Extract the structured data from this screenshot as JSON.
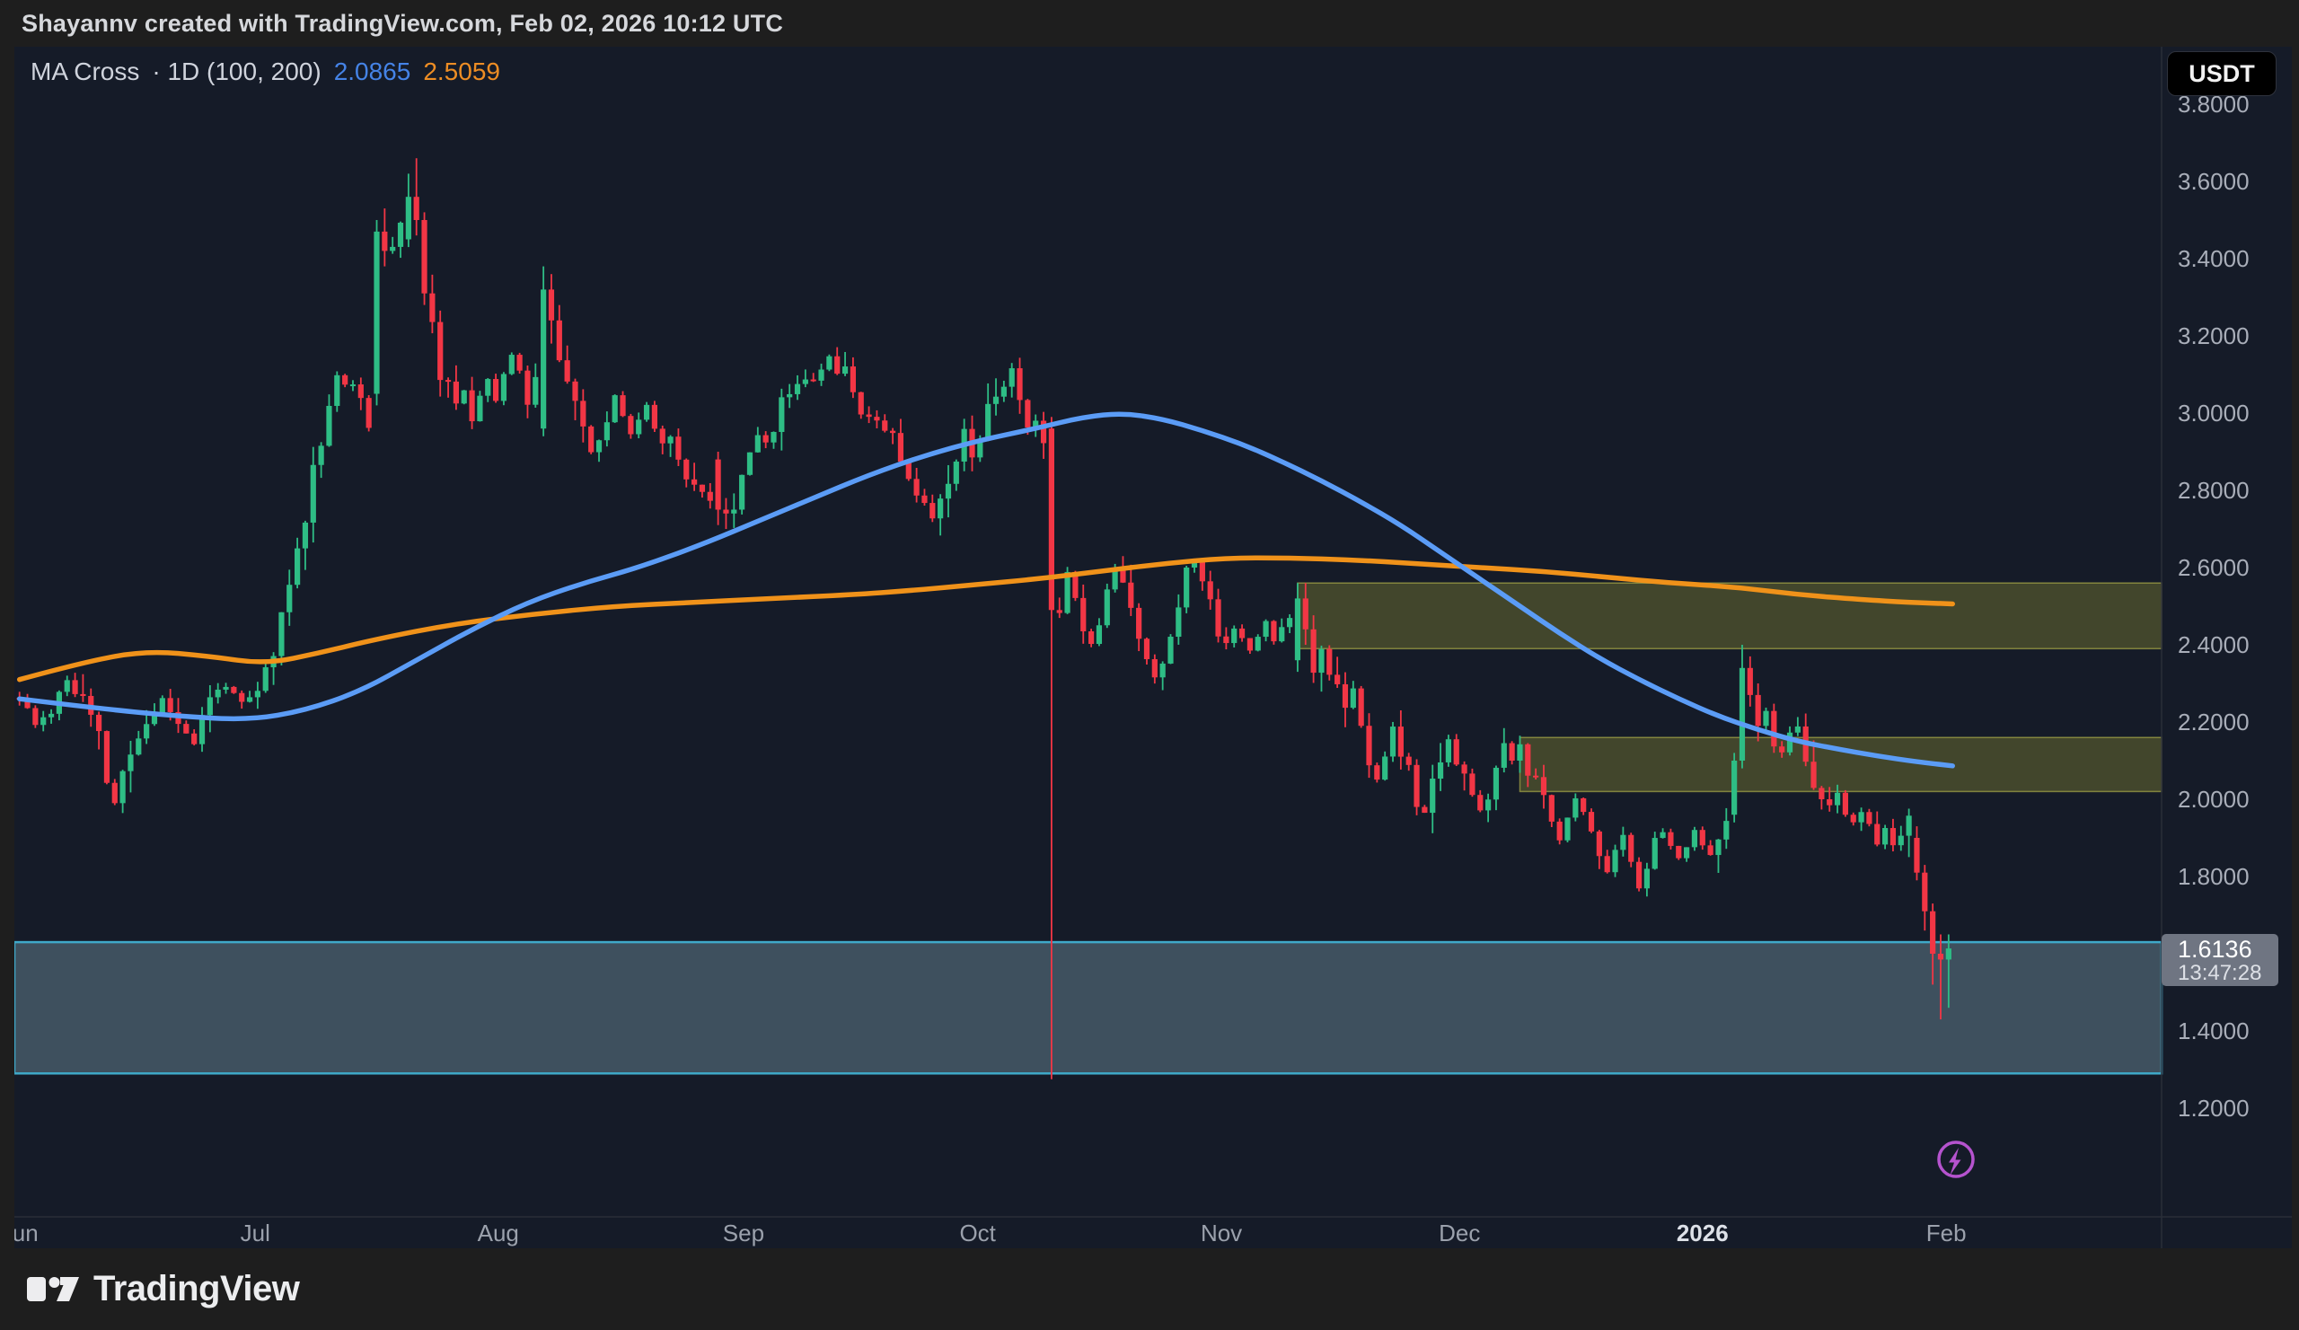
{
  "header": {
    "attribution": "Shayannv created with TradingView.com, Feb 02, 2026 10:12 UTC"
  },
  "legend": {
    "title": "MA Cross",
    "detail": "· 1D (100, 200)",
    "ma_fast_value": "2.0865",
    "ma_slow_value": "2.5059"
  },
  "price_scale": {
    "currency_button": "USDT",
    "ticks": [
      "3.8000",
      "3.6000",
      "3.4000",
      "3.2000",
      "3.0000",
      "2.8000",
      "2.6000",
      "2.4000",
      "2.2000",
      "2.0000",
      "1.8000",
      "1.6000",
      "1.4000",
      "1.2000"
    ],
    "last_price_label": {
      "price": "1.6136",
      "countdown": "13:47:28"
    }
  },
  "time_scale": {
    "ticks": [
      {
        "label": "Jun",
        "day": 0,
        "strong": false
      },
      {
        "label": "Jul",
        "day": 29.7,
        "strong": false
      },
      {
        "label": "Aug",
        "day": 60.3,
        "strong": false
      },
      {
        "label": "Sep",
        "day": 91.2,
        "strong": false
      },
      {
        "label": "Oct",
        "day": 120.7,
        "strong": false
      },
      {
        "label": "Nov",
        "day": 151.4,
        "strong": false
      },
      {
        "label": "Dec",
        "day": 181.4,
        "strong": false
      },
      {
        "label": "2026",
        "day": 212,
        "strong": true
      },
      {
        "label": "Feb",
        "day": 242.7,
        "strong": false
      }
    ]
  },
  "footer": {
    "brand": "TradingView"
  },
  "colors": {
    "background": "#151B28",
    "chrome": "#1E1E1E",
    "candle_up": "#2EBD85",
    "candle_down": "#F23645",
    "ma_fast": "#5B9CF6",
    "ma_slow": "#F0921A",
    "axis_text": "#A9AEB9",
    "separator": "#2A2E39",
    "price_label_bg": "#6F7582",
    "flash_icon": "#B553CE"
  },
  "chart_data": {
    "type": "candlestick",
    "timeframe": "1D",
    "indicator": {
      "name": "MA Cross",
      "fast_period": 100,
      "slow_period": 200,
      "fast_value": 2.0865,
      "slow_value": 2.5059
    },
    "y_axis": {
      "tick_min": 1.2,
      "tick_max": 3.8,
      "tick_step": 0.2,
      "visible_min": 1.1,
      "visible_max": 3.95
    },
    "x_axis": {
      "months": [
        "Jun",
        "Jul",
        "Aug",
        "Sep",
        "Oct",
        "Nov",
        "Dec",
        "2026",
        "Feb"
      ]
    },
    "last_close": 1.6136,
    "generation": {
      "seed": 11,
      "days": 244,
      "base_vol": 0.014,
      "vol_slope_gain": 1.3,
      "vol_max": 0.07
    },
    "price_path_waypoints": [
      [
        0,
        2.26
      ],
      [
        2,
        2.19
      ],
      [
        4,
        2.24
      ],
      [
        6,
        2.31
      ],
      [
        8,
        2.25
      ],
      [
        10,
        2.15
      ],
      [
        11,
        2.05
      ],
      [
        12,
        1.99
      ],
      [
        13,
        2.06
      ],
      [
        14,
        2.12
      ],
      [
        16,
        2.2
      ],
      [
        18,
        2.26
      ],
      [
        20,
        2.2
      ],
      [
        22,
        2.15
      ],
      [
        24,
        2.26
      ],
      [
        26,
        2.3
      ],
      [
        28,
        2.24
      ],
      [
        30,
        2.27
      ],
      [
        32,
        2.38
      ],
      [
        34,
        2.55
      ],
      [
        36,
        2.75
      ],
      [
        38,
        2.95
      ],
      [
        40,
        3.1
      ],
      [
        42,
        3.05
      ],
      [
        44,
        3.0
      ],
      [
        45,
        3.47
      ],
      [
        46,
        3.42
      ],
      [
        47,
        3.45
      ],
      [
        48,
        3.5
      ],
      [
        49,
        3.56
      ],
      [
        50,
        3.5
      ],
      [
        51,
        3.31
      ],
      [
        52,
        3.2
      ],
      [
        53,
        3.12
      ],
      [
        54,
        3.05
      ],
      [
        55,
        3.0
      ],
      [
        56,
        3.06
      ],
      [
        57,
        3.0
      ],
      [
        58,
        3.05
      ],
      [
        59,
        3.1
      ],
      [
        60,
        3.05
      ],
      [
        61,
        3.1
      ],
      [
        62,
        3.15
      ],
      [
        63,
        3.1
      ],
      [
        64,
        3.05
      ],
      [
        65,
        3.12
      ],
      [
        66,
        3.32
      ],
      [
        67,
        3.24
      ],
      [
        68,
        3.15
      ],
      [
        69,
        3.08
      ],
      [
        70,
        3.0
      ],
      [
        71,
        2.95
      ],
      [
        72,
        2.9
      ],
      [
        73,
        2.92
      ],
      [
        74,
        2.98
      ],
      [
        75,
        3.04
      ],
      [
        76,
        3.0
      ],
      [
        77,
        2.95
      ],
      [
        78,
        2.98
      ],
      [
        79,
        3.02
      ],
      [
        80,
        2.97
      ],
      [
        81,
        2.92
      ],
      [
        82,
        2.95
      ],
      [
        83,
        2.9
      ],
      [
        84,
        2.86
      ],
      [
        85,
        2.82
      ],
      [
        86,
        2.79
      ],
      [
        87,
        2.76
      ],
      [
        88,
        2.75
      ],
      [
        89,
        2.74
      ],
      [
        90,
        2.78
      ],
      [
        91,
        2.85
      ],
      [
        92,
        2.9
      ],
      [
        93,
        2.95
      ],
      [
        94,
        2.9
      ],
      [
        95,
        2.97
      ],
      [
        96,
        3.02
      ],
      [
        97,
        3.06
      ],
      [
        98,
        3.08
      ],
      [
        100,
        3.1
      ],
      [
        102,
        3.14
      ],
      [
        104,
        3.1
      ],
      [
        106,
        3.02
      ],
      [
        108,
        2.98
      ],
      [
        110,
        2.96
      ],
      [
        111,
        2.9
      ],
      [
        112,
        2.85
      ],
      [
        113,
        2.8
      ],
      [
        114,
        2.76
      ],
      [
        115,
        2.73
      ],
      [
        116,
        2.8
      ],
      [
        117,
        2.85
      ],
      [
        118,
        2.9
      ],
      [
        119,
        2.95
      ],
      [
        120,
        2.9
      ],
      [
        121,
        2.95
      ],
      [
        122,
        3.0
      ],
      [
        123,
        3.05
      ],
      [
        124,
        3.08
      ],
      [
        125,
        3.1
      ],
      [
        126,
        3.05
      ],
      [
        127,
        2.98
      ],
      [
        128,
        2.95
      ],
      [
        129,
        2.93
      ],
      [
        130,
        2.49
      ],
      [
        131,
        2.52
      ],
      [
        132,
        2.58
      ],
      [
        133,
        2.55
      ],
      [
        134,
        2.46
      ],
      [
        135,
        2.4
      ],
      [
        136,
        2.48
      ],
      [
        137,
        2.55
      ],
      [
        138,
        2.6
      ],
      [
        139,
        2.56
      ],
      [
        140,
        2.48
      ],
      [
        141,
        2.42
      ],
      [
        142,
        2.38
      ],
      [
        143,
        2.32
      ],
      [
        144,
        2.36
      ],
      [
        145,
        2.44
      ],
      [
        146,
        2.52
      ],
      [
        147,
        2.58
      ],
      [
        148,
        2.62
      ],
      [
        149,
        2.56
      ],
      [
        150,
        2.5
      ],
      [
        151,
        2.44
      ],
      [
        152,
        2.4
      ],
      [
        153,
        2.46
      ],
      [
        154,
        2.42
      ],
      [
        155,
        2.38
      ],
      [
        156,
        2.42
      ],
      [
        157,
        2.46
      ],
      [
        158,
        2.42
      ],
      [
        159,
        2.44
      ],
      [
        160,
        2.48
      ],
      [
        161,
        2.52
      ],
      [
        162,
        2.44
      ],
      [
        163,
        2.36
      ],
      [
        164,
        2.4
      ],
      [
        165,
        2.34
      ],
      [
        166,
        2.28
      ],
      [
        167,
        2.22
      ],
      [
        168,
        2.26
      ],
      [
        169,
        2.18
      ],
      [
        170,
        2.1
      ],
      [
        171,
        2.05
      ],
      [
        172,
        2.12
      ],
      [
        173,
        2.18
      ],
      [
        174,
        2.12
      ],
      [
        175,
        2.06
      ],
      [
        176,
        1.99
      ],
      [
        177,
        1.95
      ],
      [
        178,
        2.04
      ],
      [
        179,
        2.12
      ],
      [
        180,
        2.16
      ],
      [
        181,
        2.1
      ],
      [
        182,
        2.06
      ],
      [
        183,
        2.0
      ],
      [
        184,
        1.96
      ],
      [
        185,
        2.02
      ],
      [
        186,
        2.08
      ],
      [
        187,
        2.12
      ],
      [
        188,
        2.1
      ],
      [
        189,
        2.13
      ],
      [
        190,
        2.08
      ],
      [
        191,
        2.02
      ],
      [
        192,
        1.98
      ],
      [
        193,
        1.94
      ],
      [
        194,
        1.9
      ],
      [
        195,
        1.96
      ],
      [
        196,
        2.0
      ],
      [
        197,
        1.96
      ],
      [
        198,
        1.92
      ],
      [
        199,
        1.87
      ],
      [
        200,
        1.82
      ],
      [
        201,
        1.86
      ],
      [
        202,
        1.9
      ],
      [
        203,
        1.84
      ],
      [
        204,
        1.78
      ],
      [
        205,
        1.84
      ],
      [
        206,
        1.88
      ],
      [
        207,
        1.92
      ],
      [
        208,
        1.88
      ],
      [
        209,
        1.84
      ],
      [
        210,
        1.88
      ],
      [
        211,
        1.92
      ],
      [
        212,
        1.88
      ],
      [
        213,
        1.85
      ],
      [
        214,
        1.88
      ],
      [
        215,
        1.93
      ],
      [
        216,
        2.1
      ],
      [
        217,
        2.34
      ],
      [
        218,
        2.27
      ],
      [
        219,
        2.19
      ],
      [
        220,
        2.2
      ],
      [
        221,
        2.14
      ],
      [
        222,
        2.12
      ],
      [
        223,
        2.16
      ],
      [
        224,
        2.18
      ],
      [
        225,
        2.11
      ],
      [
        226,
        2.05
      ],
      [
        227,
        2.0
      ],
      [
        228,
        1.97
      ],
      [
        229,
        2.0
      ],
      [
        230,
        1.96
      ],
      [
        231,
        1.93
      ],
      [
        232,
        1.97
      ],
      [
        233,
        1.93
      ],
      [
        234,
        1.9
      ],
      [
        235,
        1.92
      ],
      [
        236,
        1.88
      ],
      [
        237,
        1.92
      ],
      [
        238,
        1.96
      ],
      [
        239,
        1.81
      ],
      [
        240,
        1.71
      ],
      [
        241,
        1.6
      ],
      [
        242,
        1.585
      ],
      [
        243,
        1.6136
      ]
    ],
    "candle_overrides": {
      "45": [
        3.05,
        3.5,
        3.02,
        3.47
      ],
      "46": [
        3.47,
        3.53,
        3.38,
        3.42
      ],
      "49": [
        3.45,
        3.62,
        3.43,
        3.56
      ],
      "50": [
        3.56,
        3.66,
        3.46,
        3.5
      ],
      "51": [
        3.5,
        3.52,
        3.28,
        3.31
      ],
      "66": [
        2.96,
        3.38,
        2.94,
        3.32
      ],
      "67": [
        3.32,
        3.36,
        3.18,
        3.24
      ],
      "88": [
        2.88,
        2.9,
        2.71,
        2.75
      ],
      "89": [
        2.75,
        2.78,
        2.7,
        2.74
      ],
      "130": [
        2.96,
        2.99,
        1.275,
        2.49
      ],
      "161": [
        2.36,
        2.56,
        2.33,
        2.52
      ],
      "162": [
        2.52,
        2.56,
        2.4,
        2.44
      ],
      "216": [
        1.96,
        2.12,
        1.94,
        2.1
      ],
      "217": [
        2.1,
        2.4,
        2.08,
        2.34
      ],
      "218": [
        2.34,
        2.37,
        2.24,
        2.27
      ],
      "219": [
        2.27,
        2.3,
        2.15,
        2.19
      ],
      "239": [
        1.9,
        1.93,
        1.79,
        1.81
      ],
      "240": [
        1.81,
        1.83,
        1.66,
        1.71
      ],
      "241": [
        1.71,
        1.73,
        1.52,
        1.6
      ],
      "242": [
        1.6,
        1.65,
        1.43,
        1.585
      ],
      "243": [
        1.585,
        1.65,
        1.46,
        1.6136
      ]
    },
    "ma_fast_points": [
      [
        0,
        2.26
      ],
      [
        10,
        2.235
      ],
      [
        20,
        2.215
      ],
      [
        29,
        2.205
      ],
      [
        36,
        2.23
      ],
      [
        43,
        2.28
      ],
      [
        50,
        2.36
      ],
      [
        57,
        2.44
      ],
      [
        64,
        2.51
      ],
      [
        71,
        2.56
      ],
      [
        78,
        2.6
      ],
      [
        86,
        2.66
      ],
      [
        93,
        2.72
      ],
      [
        100,
        2.78
      ],
      [
        107,
        2.84
      ],
      [
        114,
        2.89
      ],
      [
        121,
        2.93
      ],
      [
        128,
        2.96
      ],
      [
        134,
        2.99
      ],
      [
        139,
        3.0
      ],
      [
        144,
        2.985
      ],
      [
        149,
        2.955
      ],
      [
        154,
        2.92
      ],
      [
        159,
        2.875
      ],
      [
        164,
        2.825
      ],
      [
        169,
        2.77
      ],
      [
        174,
        2.71
      ],
      [
        179,
        2.64
      ],
      [
        184,
        2.57
      ],
      [
        189,
        2.5
      ],
      [
        194,
        2.43
      ],
      [
        199,
        2.365
      ],
      [
        204,
        2.31
      ],
      [
        209,
        2.26
      ],
      [
        214,
        2.215
      ],
      [
        219,
        2.18
      ],
      [
        224,
        2.15
      ],
      [
        229,
        2.13
      ],
      [
        234,
        2.112
      ],
      [
        239,
        2.097
      ],
      [
        243.5,
        2.0865
      ]
    ],
    "ma_slow_points": [
      [
        0,
        2.31
      ],
      [
        8,
        2.355
      ],
      [
        16,
        2.385
      ],
      [
        24,
        2.37
      ],
      [
        31,
        2.35
      ],
      [
        38,
        2.38
      ],
      [
        45,
        2.415
      ],
      [
        55,
        2.455
      ],
      [
        65,
        2.48
      ],
      [
        75,
        2.5
      ],
      [
        85,
        2.51
      ],
      [
        95,
        2.52
      ],
      [
        105,
        2.53
      ],
      [
        112,
        2.54
      ],
      [
        120,
        2.555
      ],
      [
        128,
        2.57
      ],
      [
        136,
        2.59
      ],
      [
        144,
        2.61
      ],
      [
        152,
        2.625
      ],
      [
        160,
        2.625
      ],
      [
        168,
        2.62
      ],
      [
        176,
        2.61
      ],
      [
        184,
        2.6
      ],
      [
        192,
        2.59
      ],
      [
        200,
        2.575
      ],
      [
        208,
        2.56
      ],
      [
        216,
        2.55
      ],
      [
        224,
        2.53
      ],
      [
        232,
        2.517
      ],
      [
        238,
        2.51
      ],
      [
        243.5,
        2.5059
      ]
    ],
    "zones": [
      {
        "name": "support-zone",
        "price_top": 1.63,
        "price_bottom": 1.29,
        "from_day": null,
        "fill": "rgba(125,161,176,0.40)",
        "border": "#3FA9C9",
        "border_width": 2.5
      },
      {
        "name": "supply-zone-upper",
        "price_top": 2.56,
        "price_bottom": 2.39,
        "from_day": 161,
        "fill": "rgba(163,163,53,0.32)",
        "border": "rgba(200,200,80,0.55)",
        "border_width": 1.5
      },
      {
        "name": "supply-zone-lower",
        "price_top": 2.16,
        "price_bottom": 2.02,
        "from_day": 189,
        "fill": "rgba(163,163,53,0.32)",
        "border": "rgba(200,200,80,0.55)",
        "border_width": 1.5
      }
    ],
    "crash_candle_note": {
      "day": 130,
      "open": 2.96,
      "high": 2.99,
      "low": 1.275,
      "close": 2.49
    }
  }
}
